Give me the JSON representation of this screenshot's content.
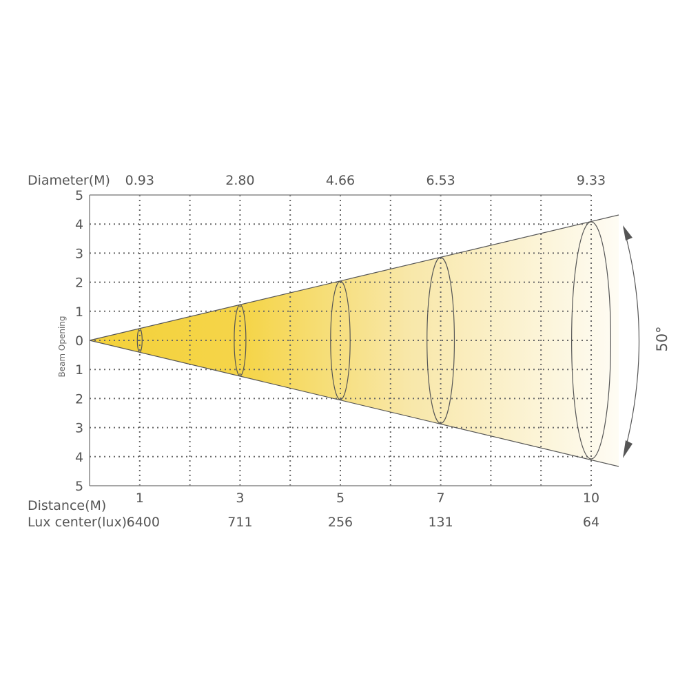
{
  "diagram": {
    "diameter_label": "Diameter(M)",
    "distance_label": "Distance(M)",
    "lux_label": "Lux center(lux)",
    "y_axis_label": "Beam Opening",
    "beam_angle_label": "50°",
    "y_ticks": [
      "5",
      "4",
      "3",
      "2",
      "1",
      "0",
      "1",
      "2",
      "3",
      "4",
      "5"
    ],
    "columns": [
      {
        "distance": "1",
        "diameter": "0.93",
        "lux": "6400"
      },
      {
        "distance": "3",
        "diameter": "2.80",
        "lux": "711"
      },
      {
        "distance": "5",
        "diameter": "4.66",
        "lux": "256"
      },
      {
        "distance": "7",
        "diameter": "6.53",
        "lux": "131"
      },
      {
        "distance": "10",
        "diameter": "9.33",
        "lux": "64"
      }
    ],
    "colors": {
      "beam": "#f4d13a",
      "lines": "#555555",
      "text": "#555555"
    }
  }
}
